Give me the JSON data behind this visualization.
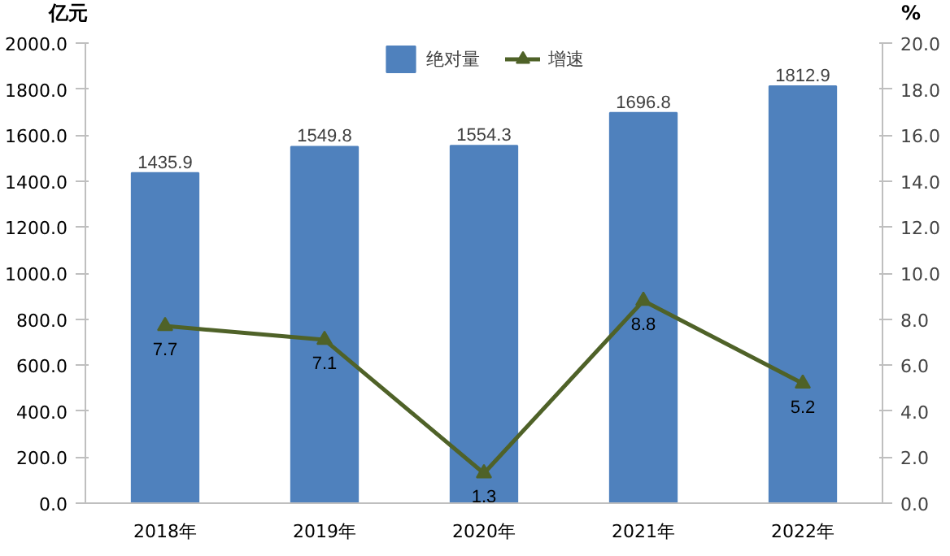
{
  "chart_data": {
    "type": "bar",
    "categories": [
      "2018年",
      "2019年",
      "2020年",
      "2021年",
      "2022年"
    ],
    "ylabel": "亿元",
    "y2label": "%",
    "series": [
      {
        "name": "绝对量",
        "color": "#4f81bd",
        "values": [
          1435.9,
          1549.8,
          1554.3,
          1696.8,
          1812.9
        ]
      },
      {
        "name": "增速",
        "type": "line",
        "axis": "y2",
        "color": "#4f6228",
        "marker": "triangle",
        "values": [
          7.7,
          7.1,
          1.3,
          8.8,
          5.2
        ]
      }
    ],
    "ylim": [
      0,
      2000
    ],
    "yticks": [
      {
        "value": 0,
        "label": "0.0"
      },
      {
        "value": 200,
        "label": "200.0"
      },
      {
        "value": 400,
        "label": "400.0"
      },
      {
        "value": 600,
        "label": "600.0"
      },
      {
        "value": 800,
        "label": "800.0"
      },
      {
        "value": 1000,
        "label": "1000.0"
      },
      {
        "value": 1200,
        "label": "1200.0"
      },
      {
        "value": 1400,
        "label": "1400.0"
      },
      {
        "value": 1600,
        "label": "1600.0"
      },
      {
        "value": 1800,
        "label": "1800.0"
      },
      {
        "value": 2000,
        "label": "2000.0"
      }
    ],
    "y2lim": [
      0,
      20
    ],
    "y2ticks": [
      {
        "value": 0,
        "label": "0.0"
      },
      {
        "value": 2,
        "label": "2.0"
      },
      {
        "value": 4,
        "label": "4.0"
      },
      {
        "value": 6,
        "label": "6.0"
      },
      {
        "value": 8,
        "label": "8.0"
      },
      {
        "value": 10,
        "label": "10.0"
      },
      {
        "value": 12,
        "label": "12.0"
      },
      {
        "value": 14,
        "label": "14.0"
      },
      {
        "value": 16,
        "label": "16.0"
      },
      {
        "value": 18,
        "label": "18.0"
      },
      {
        "value": 20,
        "label": "20.0"
      }
    ],
    "data_labels": true,
    "legend": "top",
    "grid": false
  }
}
